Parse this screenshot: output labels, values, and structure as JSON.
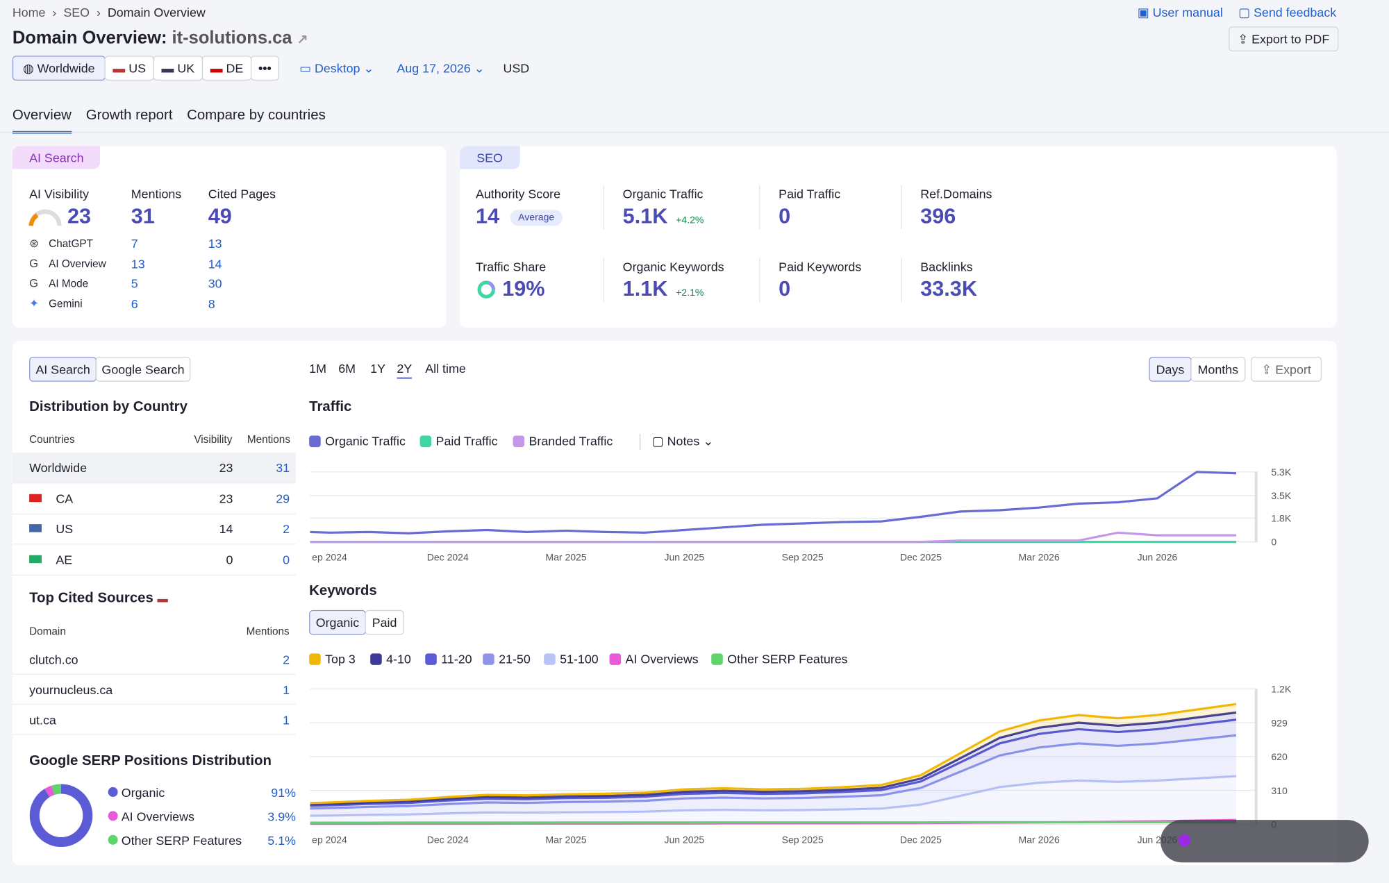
{
  "breadcrumb": [
    "Home",
    "SEO",
    "Domain Overview"
  ],
  "header": {
    "title": "Domain Overview:",
    "domain": "it-solutions.ca",
    "user_manual": "User manual",
    "send_feedback": "Send feedback",
    "export_pdf": "Export to PDF"
  },
  "filters": {
    "regions": [
      "Worldwide",
      "US",
      "UK",
      "DE"
    ],
    "device": "Desktop",
    "date": "Aug 17, 2026",
    "currency": "USD"
  },
  "tabs": [
    "Overview",
    "Growth report",
    "Compare by countries"
  ],
  "ai_search": {
    "badge": "AI Search",
    "columns": [
      "AI Visibility",
      "Mentions",
      "Cited Pages"
    ],
    "visibility": "23",
    "mentions": "31",
    "cited_pages": "49",
    "rows": [
      {
        "name": "ChatGPT",
        "mentions": "7",
        "cited": "13"
      },
      {
        "name": "AI Overview",
        "mentions": "13",
        "cited": "14"
      },
      {
        "name": "AI Mode",
        "mentions": "5",
        "cited": "30"
      },
      {
        "name": "Gemini",
        "mentions": "6",
        "cited": "8"
      }
    ]
  },
  "seo": {
    "badge": "SEO",
    "metrics": [
      {
        "label": "Authority Score",
        "value": "14",
        "tag": "Average"
      },
      {
        "label": "Organic Traffic",
        "value": "5.1K",
        "change": "+4.2%"
      },
      {
        "label": "Paid Traffic",
        "value": "0"
      },
      {
        "label": "Ref.Domains",
        "value": "396"
      },
      {
        "label": "Traffic Share",
        "value": "19%"
      },
      {
        "label": "Organic Keywords",
        "value": "1.1K",
        "change": "+2.1%"
      },
      {
        "label": "Paid Keywords",
        "value": "0"
      },
      {
        "label": "Backlinks",
        "value": "33.3K"
      }
    ]
  },
  "left": {
    "toggle": [
      "AI Search",
      "Google Search"
    ],
    "dist_title": "Distribution by Country",
    "dist_headers": [
      "Countries",
      "Visibility",
      "Mentions"
    ],
    "dist_rows": [
      [
        "Worldwide",
        "23",
        "31"
      ],
      [
        "CA",
        "23",
        "29"
      ],
      [
        "US",
        "14",
        "2"
      ],
      [
        "AE",
        "0",
        "0"
      ]
    ],
    "cited_title": "Top Cited Sources",
    "cited_headers": [
      "Domain",
      "Mentions"
    ],
    "cited_rows": [
      [
        "clutch.co",
        "2"
      ],
      [
        "yournucleus.ca",
        "1"
      ],
      [
        "ut.ca",
        "1"
      ]
    ],
    "serp_title": "Google SERP Positions Distribution"
  },
  "controls": {
    "periods": [
      "1M",
      "6M",
      "1Y",
      "2Y",
      "All time"
    ],
    "views": [
      "Days",
      "Months"
    ],
    "export": "Export",
    "notes": "Notes",
    "keyword_toggle": [
      "Organic",
      "Paid"
    ]
  },
  "chart_data": [
    {
      "type": "line",
      "title": "Traffic",
      "categories": [
        null,
        "ep 2024",
        null,
        null,
        "Dec 2024",
        null,
        null,
        "Mar 2025",
        null,
        null,
        "Jun 2025",
        null,
        null,
        "Sep 2025",
        null,
        null,
        "Dec 2025",
        null,
        null,
        "Mar 2026",
        null,
        null,
        "Jun 2026",
        null,
        null
      ],
      "series": [
        {
          "name": "Organic Traffic",
          "color": "#6a6ad4",
          "values": [
            800,
            700,
            750,
            650,
            800,
            900,
            750,
            850,
            750,
            700,
            900,
            1100,
            1300,
            1400,
            1500,
            1550,
            1900,
            2300,
            2400,
            2600,
            2900,
            3000,
            3300,
            5300,
            5200
          ]
        },
        {
          "name": "Paid Traffic",
          "color": "#3fd6a6",
          "values": [
            0,
            0,
            0,
            0,
            0,
            0,
            0,
            0,
            0,
            0,
            0,
            0,
            0,
            0,
            0,
            0,
            0,
            0,
            0,
            0,
            0,
            0,
            0,
            0,
            0
          ]
        },
        {
          "name": "Branded Traffic",
          "color": "#c597ea",
          "values": [
            0,
            0,
            0,
            0,
            0,
            0,
            0,
            0,
            0,
            0,
            0,
            0,
            0,
            0,
            0,
            0,
            0,
            100,
            100,
            100,
            100,
            700,
            500,
            500,
            500
          ]
        }
      ],
      "ylim": [
        0,
        5300
      ],
      "yticks": [
        0,
        {
          "value": 1800,
          "label": "1.8K"
        },
        {
          "value": 3500,
          "label": "3.5K"
        },
        {
          "value": 5300,
          "label": "5.3K"
        }
      ],
      "grid": true
    },
    {
      "type": "area",
      "title": "Keywords",
      "stacked": true,
      "categories": [
        null,
        "ep 2024",
        null,
        null,
        "Dec 2024",
        null,
        null,
        "Mar 2025",
        null,
        null,
        "Jun 2025",
        null,
        null,
        "Sep 2025",
        null,
        null,
        "Dec 2025",
        null,
        null,
        "Mar 2026",
        null,
        null,
        "Jun 2026",
        null,
        null
      ],
      "series": [
        {
          "name": "Top 3",
          "color": "#f2b705",
          "values": [
            13,
            14,
            15,
            15,
            17,
            19,
            19,
            18,
            20,
            20,
            22,
            23,
            22,
            22,
            24,
            25,
            31,
            45,
            59,
            66,
            70,
            68,
            70,
            73,
            77
          ]
        },
        {
          "name": "4-10",
          "color": "#3b3a9a",
          "values": [
            11,
            12,
            13,
            14,
            15,
            16,
            16,
            17,
            17,
            17,
            19,
            20,
            19,
            20,
            20,
            22,
            27,
            39,
            51,
            57,
            60,
            58,
            60,
            63,
            66
          ]
        },
        {
          "name": "11-20",
          "color": "#5b5bd6",
          "values": [
            25,
            26,
            28,
            29,
            33,
            35,
            34,
            36,
            36,
            38,
            42,
            43,
            42,
            42,
            44,
            47,
            59,
            85,
            111,
            124,
            130,
            126,
            130,
            137,
            143
          ]
        },
        {
          "name": "21-50",
          "color": "#8d96eb",
          "values": [
            65,
            68,
            73,
            77,
            85,
            92,
            90,
            94,
            95,
            99,
            109,
            112,
            109,
            111,
            116,
            122,
            153,
            221,
            289,
            323,
            340,
            330,
            340,
            357,
            374
          ]
        },
        {
          "name": "51-100",
          "color": "#b9c3f5",
          "values": [
            76,
            80,
            86,
            90,
            100,
            108,
            106,
            110,
            112,
            116,
            128,
            132,
            128,
            130,
            136,
            144,
            180,
            260,
            340,
            380,
            400,
            388,
            400,
            420,
            440
          ]
        },
        {
          "name": "AI Overviews",
          "color": "#e85ad8",
          "stacked": false,
          "values": [
            5,
            5,
            5,
            6,
            6,
            6,
            7,
            7,
            7,
            8,
            8,
            9,
            9,
            10,
            10,
            11,
            12,
            14,
            16,
            18,
            20,
            24,
            28,
            34,
            40
          ]
        },
        {
          "name": "Other SERP Features",
          "color": "#5fd46b",
          "stacked": false,
          "values": [
            15,
            15,
            15,
            16,
            16,
            16,
            16,
            17,
            17,
            17,
            17,
            18,
            18,
            18,
            18,
            18,
            18,
            19,
            19,
            19,
            19,
            20,
            20,
            20,
            20
          ]
        }
      ],
      "ylim": [
        0,
        1239
      ],
      "yticks": [
        0,
        310,
        620,
        929,
        {
          "value": 1239,
          "label": "1.2K"
        }
      ],
      "grid": true
    },
    {
      "type": "pie",
      "title": "Google SERP Positions Distribution",
      "categories": [
        "Organic",
        "AI Overviews",
        "Other SERP Features"
      ],
      "values": [
        91,
        3.9,
        5.1
      ],
      "value_labels": [
        "91%",
        "3.9%",
        "5.1%"
      ],
      "colors": [
        "#5b5bd6",
        "#e85ad8",
        "#5fd46b"
      ]
    }
  ]
}
